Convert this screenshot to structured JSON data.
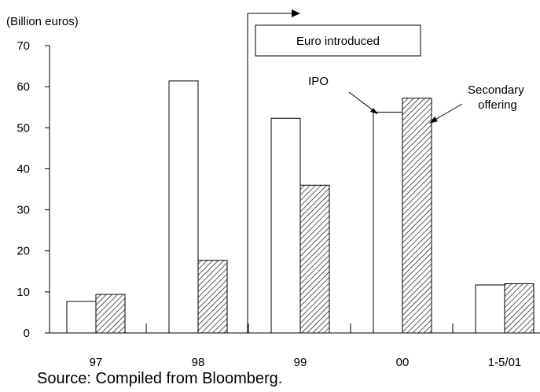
{
  "chart_data": {
    "type": "bar",
    "unit_label": "(Billion euros)",
    "categories": [
      "97",
      "98",
      "99",
      "00",
      "1-5/01"
    ],
    "series": [
      {
        "name": "IPO",
        "values": [
          7.7,
          61.4,
          52.3,
          53.8,
          11.7
        ],
        "fill": "#ffffff"
      },
      {
        "name": "Secondary offering",
        "values": [
          9.4,
          17.7,
          36.0,
          57.2,
          12.0
        ],
        "fill": "hatched"
      }
    ],
    "y_ticks": [
      0,
      10,
      20,
      30,
      40,
      50,
      60,
      70
    ],
    "ylim": [
      0,
      70
    ],
    "grid": false,
    "annotation": "Euro introduced",
    "source": "Source: Compiled from Bloomberg."
  }
}
